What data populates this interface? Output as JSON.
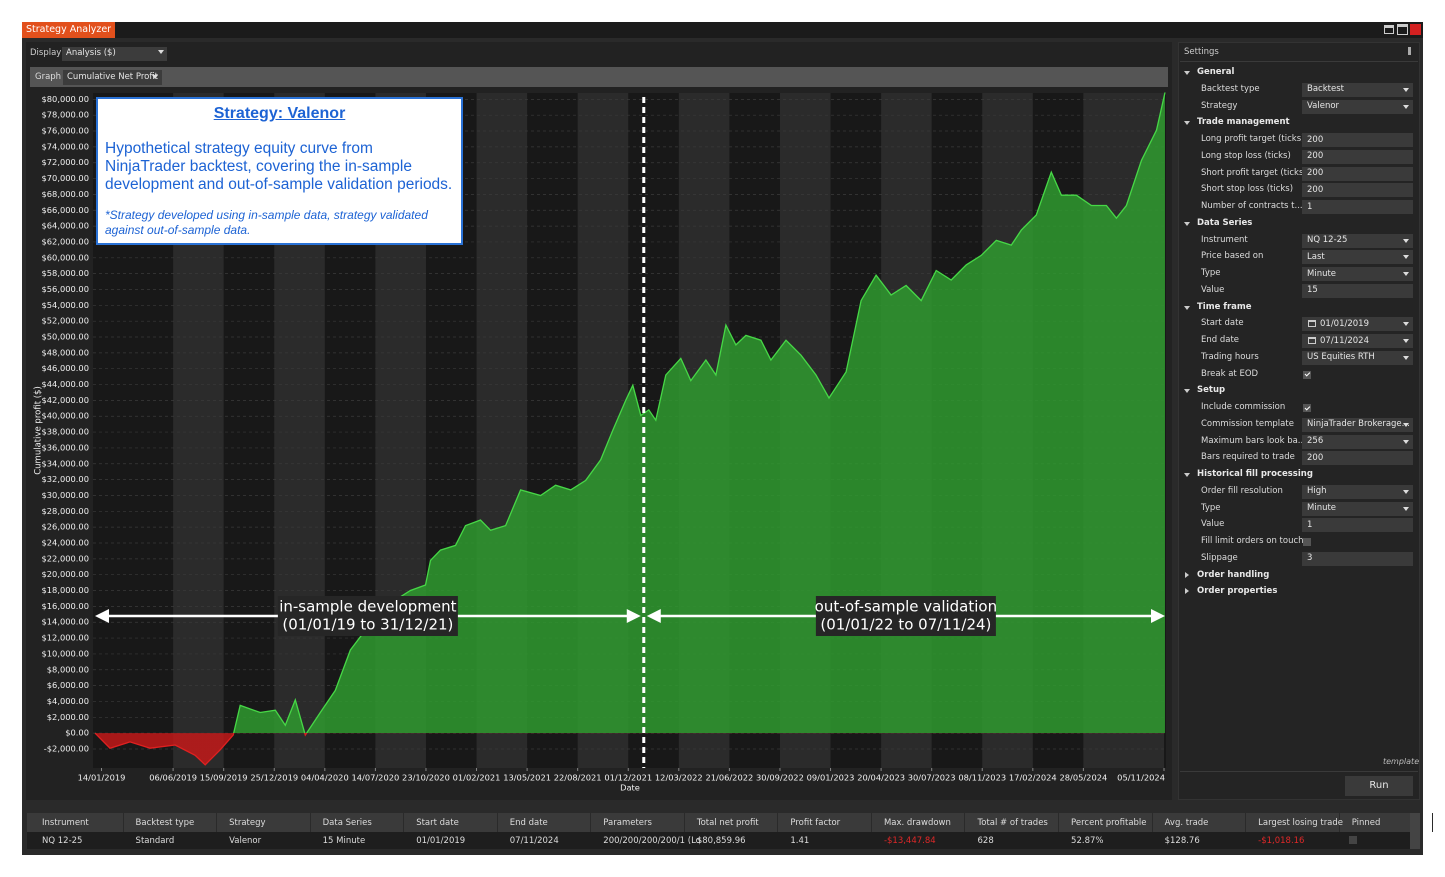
{
  "window": {
    "title": "Strategy Analyzer"
  },
  "toolbar": {
    "display_label": "Display",
    "display_value": "Analysis ($)",
    "graph_label": "Graph",
    "graph_value": "Cumulative Net Profit"
  },
  "chart_data": {
    "type": "area",
    "y_axis_label": "Cumulative profit ($)",
    "x_axis_label": "Date",
    "color": "#2f9e2f",
    "negative_color": "#c81818",
    "x": [
      "2019-01-01",
      "2019-01-31",
      "2019-03-12",
      "2019-04-21",
      "2019-06-10",
      "2019-07-20",
      "2019-08-09",
      "2019-09-08",
      "2019-10-04",
      "2019-10-18",
      "2019-11-27",
      "2019-12-27",
      "2020-01-16",
      "2020-02-05",
      "2020-02-25",
      "2020-03-26",
      "2020-04-25",
      "2020-05-25",
      "2020-06-24",
      "2020-07-24",
      "2020-08-23",
      "2020-09-22",
      "2020-10-22",
      "2020-11-01",
      "2020-11-21",
      "2020-12-21",
      "2021-01-10",
      "2021-02-09",
      "2021-03-01",
      "2021-03-31",
      "2021-04-30",
      "2021-06-09",
      "2021-07-09",
      "2021-08-08",
      "2021-09-07",
      "2021-10-07",
      "2021-10-31",
      "2021-11-26",
      "2021-12-10",
      "2021-12-26",
      "2022-01-11",
      "2022-01-25",
      "2022-02-14",
      "2022-03-16",
      "2022-04-05",
      "2022-05-05",
      "2022-05-25",
      "2022-06-14",
      "2022-07-04",
      "2022-07-24",
      "2022-08-23",
      "2022-09-12",
      "2022-10-12",
      "2022-11-11",
      "2022-12-11",
      "2023-01-06",
      "2023-02-09",
      "2023-03-11",
      "2023-04-10",
      "2023-05-10",
      "2023-06-09",
      "2023-07-09",
      "2023-08-08",
      "2023-09-07",
      "2023-10-07",
      "2023-11-06",
      "2023-12-06",
      "2024-01-05",
      "2024-01-25",
      "2024-02-24",
      "2024-03-25",
      "2024-04-14",
      "2024-05-14",
      "2024-06-13",
      "2024-07-13",
      "2024-08-02",
      "2024-08-22",
      "2024-09-21",
      "2024-10-21",
      "2024-11-07"
    ],
    "values": [
      0,
      -1900,
      -1100,
      -1900,
      -1500,
      -2800,
      -4000,
      -2100,
      -250,
      3500,
      2600,
      2900,
      1000,
      4200,
      -250,
      2600,
      5400,
      10500,
      13000,
      15300,
      16800,
      18000,
      18700,
      21800,
      23100,
      23700,
      26200,
      26900,
      25600,
      26200,
      30700,
      30000,
      31300,
      30700,
      31900,
      34500,
      38200,
      42000,
      43900,
      40100,
      40800,
      39500,
      45200,
      47300,
      44500,
      47100,
      45200,
      51500,
      49000,
      50200,
      49600,
      47100,
      49600,
      47700,
      45200,
      42300,
      45600,
      54600,
      57800,
      55300,
      56500,
      54600,
      58400,
      57200,
      59100,
      60300,
      62200,
      61600,
      63500,
      65400,
      70800,
      67900,
      67900,
      66600,
      66600,
      65000,
      66600,
      72300,
      76100,
      80860
    ],
    "xlim": [
      "2019-01-01",
      "2024-11-07"
    ],
    "xticks": [
      {
        "value": "2019-01-14",
        "label": "14/01/2019"
      },
      {
        "value": "2019-06-06",
        "label": "06/06/2019"
      },
      {
        "value": "2019-09-15",
        "label": "15/09/2019"
      },
      {
        "value": "2019-12-25",
        "label": "25/12/2019"
      },
      {
        "value": "2020-04-04",
        "label": "04/04/2020"
      },
      {
        "value": "2020-07-14",
        "label": "14/07/2020"
      },
      {
        "value": "2020-10-23",
        "label": "23/10/2020"
      },
      {
        "value": "2021-02-01",
        "label": "01/02/2021"
      },
      {
        "value": "2021-05-13",
        "label": "13/05/2021"
      },
      {
        "value": "2021-08-22",
        "label": "22/08/2021"
      },
      {
        "value": "2021-12-01",
        "label": "01/12/2021"
      },
      {
        "value": "2022-03-12",
        "label": "12/03/2022"
      },
      {
        "value": "2022-06-21",
        "label": "21/06/2022"
      },
      {
        "value": "2022-09-30",
        "label": "30/09/2022"
      },
      {
        "value": "2023-01-09",
        "label": "09/01/2023"
      },
      {
        "value": "2023-04-20",
        "label": "20/04/2023"
      },
      {
        "value": "2023-07-30",
        "label": "30/07/2023"
      },
      {
        "value": "2023-11-08",
        "label": "08/11/2023"
      },
      {
        "value": "2024-02-17",
        "label": "17/02/2024"
      },
      {
        "value": "2024-05-28",
        "label": "28/05/2024"
      },
      {
        "value": "2024-11-05",
        "label": "05/11/2024"
      }
    ],
    "ylim": [
      -4400,
      80800
    ],
    "yticks": [
      {
        "value": -2000,
        "label": "-$2,000.00"
      },
      {
        "value": 0,
        "label": "$0.00"
      },
      {
        "value": 2000,
        "label": "$2,000.00"
      },
      {
        "value": 4000,
        "label": "$4,000.00"
      },
      {
        "value": 6000,
        "label": "$6,000.00"
      },
      {
        "value": 8000,
        "label": "$8,000.00"
      },
      {
        "value": 10000,
        "label": "$10,000.00"
      },
      {
        "value": 12000,
        "label": "$12,000.00"
      },
      {
        "value": 14000,
        "label": "$14,000.00"
      },
      {
        "value": 16000,
        "label": "$16,000.00"
      },
      {
        "value": 18000,
        "label": "$18,000.00"
      },
      {
        "value": 20000,
        "label": "$20,000.00"
      },
      {
        "value": 22000,
        "label": "$22,000.00"
      },
      {
        "value": 24000,
        "label": "$24,000.00"
      },
      {
        "value": 26000,
        "label": "$26,000.00"
      },
      {
        "value": 28000,
        "label": "$28,000.00"
      },
      {
        "value": 30000,
        "label": "$30,000.00"
      },
      {
        "value": 32000,
        "label": "$32,000.00"
      },
      {
        "value": 34000,
        "label": "$34,000.00"
      },
      {
        "value": 36000,
        "label": "$36,000.00"
      },
      {
        "value": 38000,
        "label": "$38,000.00"
      },
      {
        "value": 40000,
        "label": "$40,000.00"
      },
      {
        "value": 42000,
        "label": "$42,000.00"
      },
      {
        "value": 44000,
        "label": "$44,000.00"
      },
      {
        "value": 46000,
        "label": "$46,000.00"
      },
      {
        "value": 48000,
        "label": "$48,000.00"
      },
      {
        "value": 50000,
        "label": "$50,000.00"
      },
      {
        "value": 52000,
        "label": "$52,000.00"
      },
      {
        "value": 54000,
        "label": "$54,000.00"
      },
      {
        "value": 56000,
        "label": "$56,000.00"
      },
      {
        "value": 58000,
        "label": "$58,000.00"
      },
      {
        "value": 60000,
        "label": "$60,000.00"
      },
      {
        "value": 62000,
        "label": "$62,000.00"
      },
      {
        "value": 64000,
        "label": "$64,000.00"
      },
      {
        "value": 66000,
        "label": "$66,000.00"
      },
      {
        "value": 68000,
        "label": "$68,000.00"
      },
      {
        "value": 70000,
        "label": "$70,000.00"
      },
      {
        "value": 72000,
        "label": "$72,000.00"
      },
      {
        "value": 74000,
        "label": "$74,000.00"
      },
      {
        "value": 76000,
        "label": "$76,000.00"
      },
      {
        "value": 78000,
        "label": "$78,000.00"
      },
      {
        "value": 80000,
        "label": "$80,000.00"
      }
    ],
    "grid": true,
    "divider_x": "2022-01-01",
    "annotations": {
      "box_title": "Strategy: Valenor",
      "box_text": "Hypothetical strategy equity curve from NinjaTrader backtest, covering the in-sample development and out-of-sample validation periods.",
      "box_note": "*Strategy developed using in-sample data, strategy validated against out-of-sample data.",
      "in_sample": [
        "in-sample development",
        "(01/01/19 to 31/12/21)"
      ],
      "out_of_sample": [
        "out-of-sample validation",
        "(01/01/22 to 07/11/24)"
      ]
    }
  },
  "settings": {
    "title": "Settings",
    "sections": [
      {
        "name": "General",
        "expanded": true,
        "rows": [
          {
            "label": "Backtest type",
            "value": "Backtest",
            "control": "dropdown"
          },
          {
            "label": "Strategy",
            "value": "Valenor",
            "control": "dropdown"
          }
        ]
      },
      {
        "name": "Trade management",
        "expanded": true,
        "rows": [
          {
            "label": "Long profit target (ticks)",
            "value": "200",
            "control": "text"
          },
          {
            "label": "Long stop loss (ticks)",
            "value": "200",
            "control": "text"
          },
          {
            "label": "Short profit target (ticks)",
            "value": "200",
            "control": "text"
          },
          {
            "label": "Short stop loss (ticks)",
            "value": "200",
            "control": "text"
          },
          {
            "label": "Number of contracts t...",
            "value": "1",
            "control": "text"
          }
        ]
      },
      {
        "name": "Data Series",
        "expanded": true,
        "rows": [
          {
            "label": "Instrument",
            "value": "NQ 12-25",
            "control": "dropdown"
          },
          {
            "label": "Price based on",
            "value": "Last",
            "control": "dropdown"
          },
          {
            "label": "Type",
            "value": "Minute",
            "control": "dropdown"
          },
          {
            "label": "Value",
            "value": "15",
            "control": "text"
          }
        ]
      },
      {
        "name": "Time frame",
        "expanded": true,
        "rows": [
          {
            "label": "Start date",
            "value": "01/01/2019",
            "control": "date"
          },
          {
            "label": "End date",
            "value": "07/11/2024",
            "control": "date"
          },
          {
            "label": "Trading hours",
            "value": "US Equities RTH",
            "control": "dropdown"
          },
          {
            "label": "Break at EOD",
            "checked": true,
            "control": "checkbox"
          }
        ]
      },
      {
        "name": "Setup",
        "expanded": true,
        "rows": [
          {
            "label": "Include commission",
            "checked": true,
            "control": "checkbox"
          },
          {
            "label": "Commission template",
            "value": "NinjaTrader Brokerage...",
            "control": "dropdown"
          },
          {
            "label": "Maximum bars look ba...",
            "value": "256",
            "control": "dropdown"
          },
          {
            "label": "Bars required to trade",
            "value": "200",
            "control": "text"
          }
        ]
      },
      {
        "name": "Historical fill processing",
        "expanded": true,
        "rows": [
          {
            "label": "Order fill resolution",
            "value": "High",
            "control": "dropdown"
          },
          {
            "label": "Type",
            "value": "Minute",
            "control": "dropdown"
          },
          {
            "label": "Value",
            "value": "1",
            "control": "text"
          },
          {
            "label": "Fill limit orders on touch",
            "checked": false,
            "control": "checkbox"
          },
          {
            "label": "Slippage",
            "value": "3",
            "control": "text"
          }
        ]
      },
      {
        "name": "Order handling",
        "expanded": false,
        "rows": []
      },
      {
        "name": "Order properties",
        "expanded": false,
        "rows": []
      }
    ],
    "template": "template",
    "run_button": "Run"
  },
  "results_table": {
    "headers": [
      "Instrument",
      "Backtest type",
      "Strategy",
      "Data Series",
      "Start date",
      "End date",
      "Parameters",
      "Total net profit",
      "Profit factor",
      "Max. drawdown",
      "Total # of trades",
      "Percent profitable",
      "Avg. trade",
      "Largest losing trade",
      "Pinned"
    ],
    "rows": [
      [
        "NQ 12-25",
        "Standard",
        "Valenor",
        "15 Minute",
        "01/01/2019",
        "07/11/2024",
        "200/200/200/200/1 (Lo",
        "$80,859.96",
        "1.41",
        "-$13,447.84",
        "628",
        "52.87%",
        "$128.76",
        "-$1,018.16"
      ]
    ],
    "pinned": [
      false
    ]
  }
}
